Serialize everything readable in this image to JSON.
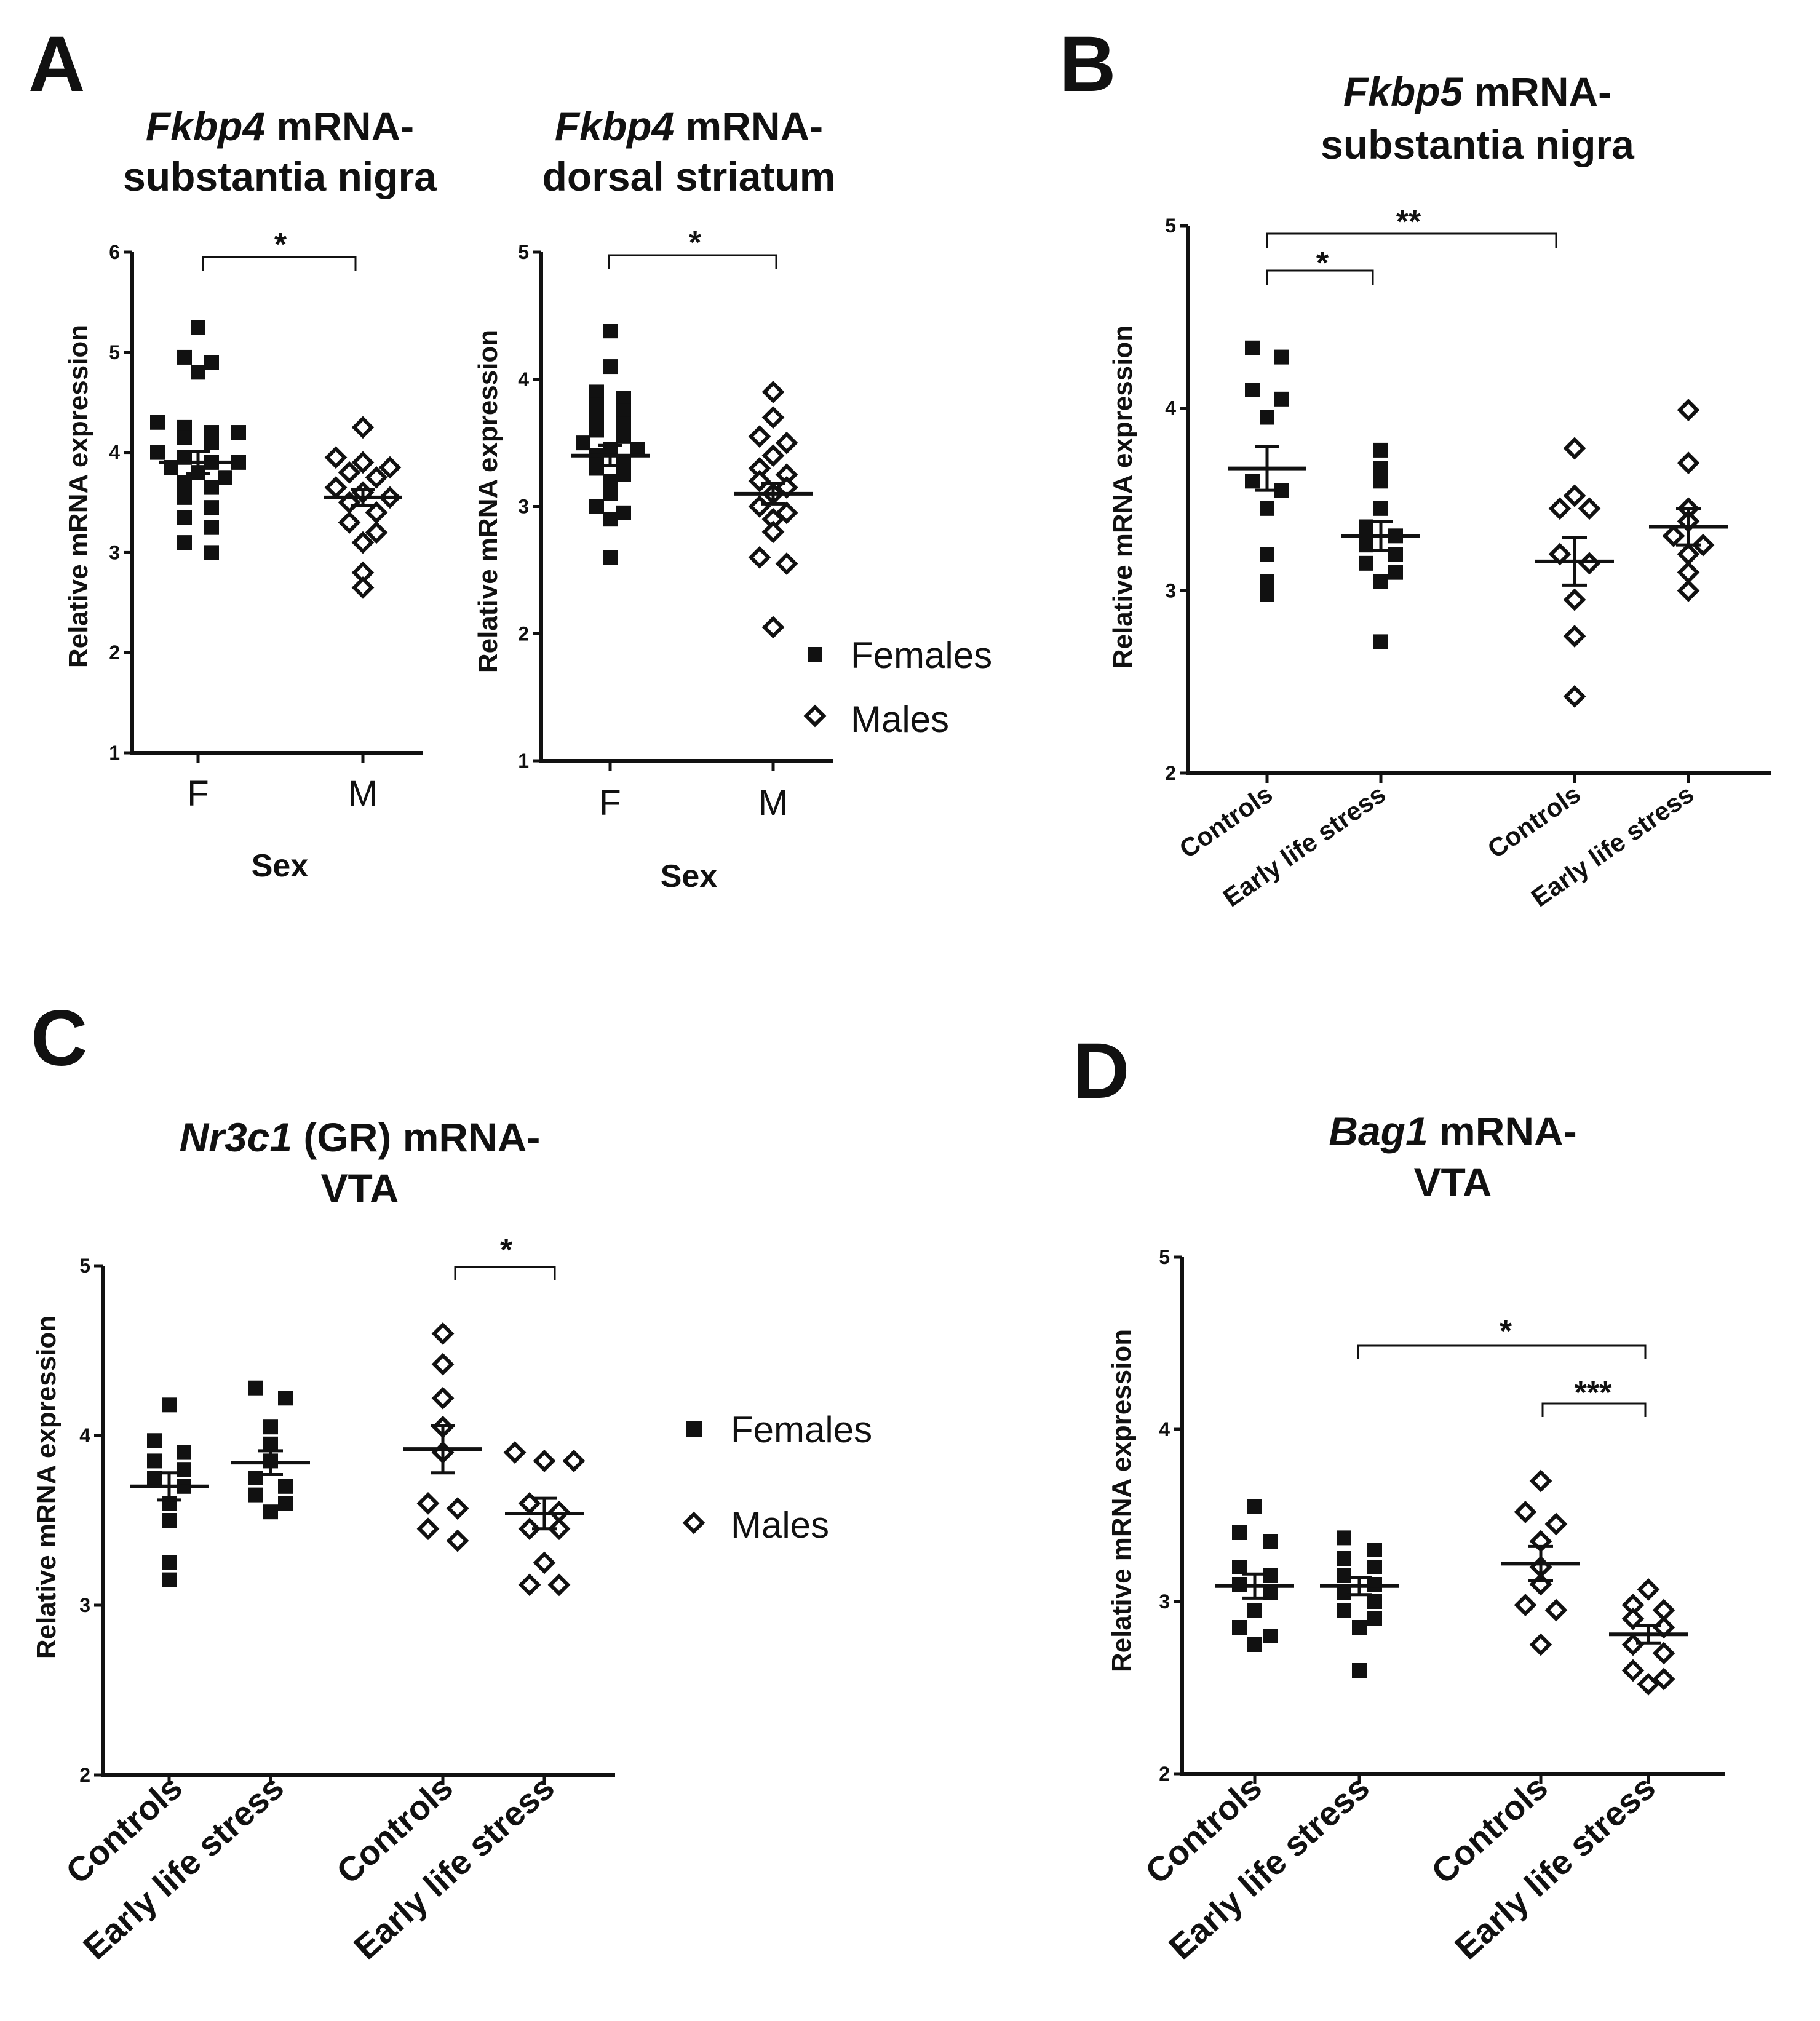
{
  "legend": {
    "females": "Females",
    "males": "Males"
  },
  "panels": {
    "A": {
      "letter": "A",
      "left": {
        "title_italic": "Fkbp4",
        "title_rest": " mRNA-",
        "title_line2": "substantia nigra",
        "xlabel": "Sex",
        "ylabel": "Relative mRNA expression",
        "categories": [
          "F",
          "M"
        ],
        "significance": "*"
      },
      "right": {
        "title_italic": "Fkbp4",
        "title_rest": " mRNA-",
        "title_line2": "dorsal striatum",
        "xlabel": "Sex",
        "ylabel": "Relative mRNA expression",
        "categories": [
          "F",
          "M"
        ],
        "significance": "*"
      }
    },
    "B": {
      "letter": "B",
      "title_italic": "Fkbp5",
      "title_rest": " mRNA-",
      "title_line2": "substantia nigra",
      "ylabel": "Relative mRNA expression",
      "categories": [
        "Controls",
        "Early life stress",
        "Controls",
        "Early life stress"
      ],
      "sig_inner": "*",
      "sig_outer": "**"
    },
    "C": {
      "letter": "C",
      "title_italic": "Nr3c1",
      "title_rest": " (GR) mRNA-",
      "title_line2": "VTA",
      "ylabel": "Relative mRNA expression",
      "categories": [
        "Controls",
        "Early life stress",
        "Controls",
        "Early life stress"
      ],
      "sig": "*"
    },
    "D": {
      "letter": "D",
      "title_italic": "Bag1",
      "title_rest": " mRNA-",
      "title_line2": "VTA",
      "ylabel": "Relative mRNA expression",
      "categories": [
        "Controls",
        "Early life stress",
        "Controls",
        "Early life stress"
      ],
      "sig_outer": "*",
      "sig_inner": "***"
    }
  },
  "chart_data": [
    {
      "id": "A1",
      "type": "scatter",
      "title": "Fkbp4 mRNA- substantia nigra",
      "xlabel": "Sex",
      "ylabel": "Relative mRNA expression",
      "ylim": [
        1,
        6
      ],
      "yticks": [
        1,
        2,
        3,
        4,
        5,
        6
      ],
      "groups": [
        {
          "category": "F",
          "sex": "female",
          "mean": 3.9,
          "sem": 0.11,
          "values": [
            5.25,
            4.95,
            4.9,
            4.8,
            4.3,
            4.25,
            4.2,
            4.2,
            4.15,
            4.1,
            4.0,
            3.95,
            3.9,
            3.9,
            3.85,
            3.8,
            3.75,
            3.7,
            3.65,
            3.55,
            3.45,
            3.35,
            3.25,
            3.1,
            3.0
          ]
        },
        {
          "category": "M",
          "sex": "male",
          "mean": 3.55,
          "sem": 0.08,
          "values": [
            4.25,
            3.95,
            3.9,
            3.85,
            3.8,
            3.75,
            3.65,
            3.6,
            3.55,
            3.5,
            3.4,
            3.3,
            3.2,
            3.1,
            2.8,
            2.65
          ]
        }
      ],
      "significance": {
        "label": "*",
        "between": [
          "F",
          "M"
        ]
      }
    },
    {
      "id": "A2",
      "type": "scatter",
      "title": "Fkbp4 mRNA- dorsal striatum",
      "xlabel": "Sex",
      "ylabel": "Relative mRNA expression",
      "ylim": [
        1,
        5
      ],
      "yticks": [
        1,
        2,
        3,
        4,
        5
      ],
      "groups": [
        {
          "category": "F",
          "sex": "female",
          "mean": 3.4,
          "sem": 0.08,
          "values": [
            4.38,
            4.1,
            3.9,
            3.85,
            3.8,
            3.75,
            3.7,
            3.65,
            3.6,
            3.55,
            3.5,
            3.45,
            3.45,
            3.4,
            3.35,
            3.3,
            3.25,
            3.2,
            3.1,
            3.0,
            2.95,
            2.9,
            2.6
          ]
        },
        {
          "category": "M",
          "sex": "male",
          "mean": 3.1,
          "sem": 0.08,
          "values": [
            3.9,
            3.7,
            3.55,
            3.5,
            3.4,
            3.3,
            3.25,
            3.2,
            3.15,
            3.1,
            3.0,
            2.95,
            2.9,
            2.8,
            2.6,
            2.55,
            2.05
          ]
        }
      ],
      "significance": {
        "label": "*",
        "between": [
          "F",
          "M"
        ]
      }
    },
    {
      "id": "B",
      "type": "scatter",
      "title": "Fkbp5 mRNA- substantia nigra",
      "ylabel": "Relative mRNA expression",
      "ylim": [
        2,
        5
      ],
      "yticks": [
        2,
        3,
        4,
        5
      ],
      "groups": [
        {
          "category": "Controls",
          "sex": "female",
          "mean": 3.67,
          "sem": 0.12,
          "values": [
            4.33,
            4.28,
            4.1,
            4.05,
            3.95,
            3.6,
            3.55,
            3.45,
            3.2,
            3.05,
            2.98
          ]
        },
        {
          "category": "Early life stress",
          "sex": "female",
          "mean": 3.3,
          "sem": 0.08,
          "values": [
            3.77,
            3.67,
            3.6,
            3.45,
            3.35,
            3.3,
            3.25,
            3.2,
            3.15,
            3.1,
            3.05,
            2.72
          ]
        },
        {
          "category": "Controls",
          "sex": "male",
          "mean": 3.16,
          "sem": 0.13,
          "values": [
            3.78,
            3.52,
            3.45,
            3.45,
            3.2,
            3.15,
            2.95,
            2.75,
            2.42
          ]
        },
        {
          "category": "Early life stress",
          "sex": "male",
          "mean": 3.35,
          "sem": 0.1,
          "values": [
            3.99,
            3.7,
            3.45,
            3.38,
            3.3,
            3.25,
            3.2,
            3.1,
            3.0
          ]
        }
      ],
      "significance": [
        {
          "label": "*",
          "between": [
            "Controls (F)",
            "Early life stress (F)"
          ]
        },
        {
          "label": "**",
          "between": [
            "Controls (F)",
            "Controls (M)"
          ]
        }
      ]
    },
    {
      "id": "C",
      "type": "scatter",
      "title": "Nr3c1 (GR) mRNA- VTA",
      "ylabel": "Relative mRNA expression",
      "ylim": [
        2,
        5
      ],
      "yticks": [
        2,
        3,
        4,
        5
      ],
      "groups": [
        {
          "category": "Controls",
          "sex": "female",
          "mean": 3.7,
          "sem": 0.08,
          "values": [
            4.18,
            3.97,
            3.9,
            3.85,
            3.8,
            3.75,
            3.7,
            3.6,
            3.5,
            3.25,
            3.15
          ]
        },
        {
          "category": "Early life stress",
          "sex": "female",
          "mean": 3.84,
          "sem": 0.07,
          "values": [
            4.28,
            4.22,
            4.05,
            3.95,
            3.85,
            3.75,
            3.7,
            3.65,
            3.6,
            3.55
          ]
        },
        {
          "category": "Controls",
          "sex": "male",
          "mean": 3.92,
          "sem": 0.14,
          "values": [
            4.6,
            4.42,
            4.22,
            4.05,
            3.9,
            3.6,
            3.57,
            3.45,
            3.38
          ]
        },
        {
          "category": "Early life stress",
          "sex": "male",
          "mean": 3.54,
          "sem": 0.09,
          "values": [
            3.9,
            3.85,
            3.85,
            3.6,
            3.55,
            3.45,
            3.45,
            3.25,
            3.12,
            3.12
          ]
        }
      ],
      "significance": [
        {
          "label": "*",
          "between": [
            "Controls (M)",
            "Early life stress (M)"
          ]
        }
      ]
    },
    {
      "id": "D",
      "type": "scatter",
      "title": "Bag1 mRNA- VTA",
      "ylabel": "Relative mRNA expression",
      "ylim": [
        2,
        5
      ],
      "yticks": [
        2,
        3,
        4,
        5
      ],
      "groups": [
        {
          "category": "Controls",
          "sex": "female",
          "mean": 3.09,
          "sem": 0.07,
          "values": [
            3.55,
            3.4,
            3.35,
            3.2,
            3.15,
            3.1,
            3.05,
            2.95,
            2.85,
            2.8,
            2.75
          ]
        },
        {
          "category": "Early life stress",
          "sex": "female",
          "mean": 3.09,
          "sem": 0.05,
          "values": [
            3.37,
            3.3,
            3.25,
            3.2,
            3.15,
            3.1,
            3.05,
            3.0,
            2.95,
            2.9,
            2.85,
            2.6
          ]
        },
        {
          "category": "Controls",
          "sex": "male",
          "mean": 3.22,
          "sem": 0.1,
          "values": [
            3.7,
            3.52,
            3.45,
            3.35,
            3.2,
            3.1,
            2.98,
            2.95,
            2.75
          ]
        },
        {
          "category": "Early life stress",
          "sex": "male",
          "mean": 2.81,
          "sem": 0.05,
          "values": [
            3.07,
            2.98,
            2.95,
            2.9,
            2.85,
            2.75,
            2.7,
            2.6,
            2.55,
            2.52
          ]
        }
      ],
      "significance": [
        {
          "label": "*",
          "between": [
            "Early life stress (F)",
            "Early life stress (M)"
          ]
        },
        {
          "label": "***",
          "between": [
            "Controls (M)",
            "Early life stress (M)"
          ]
        }
      ]
    }
  ]
}
